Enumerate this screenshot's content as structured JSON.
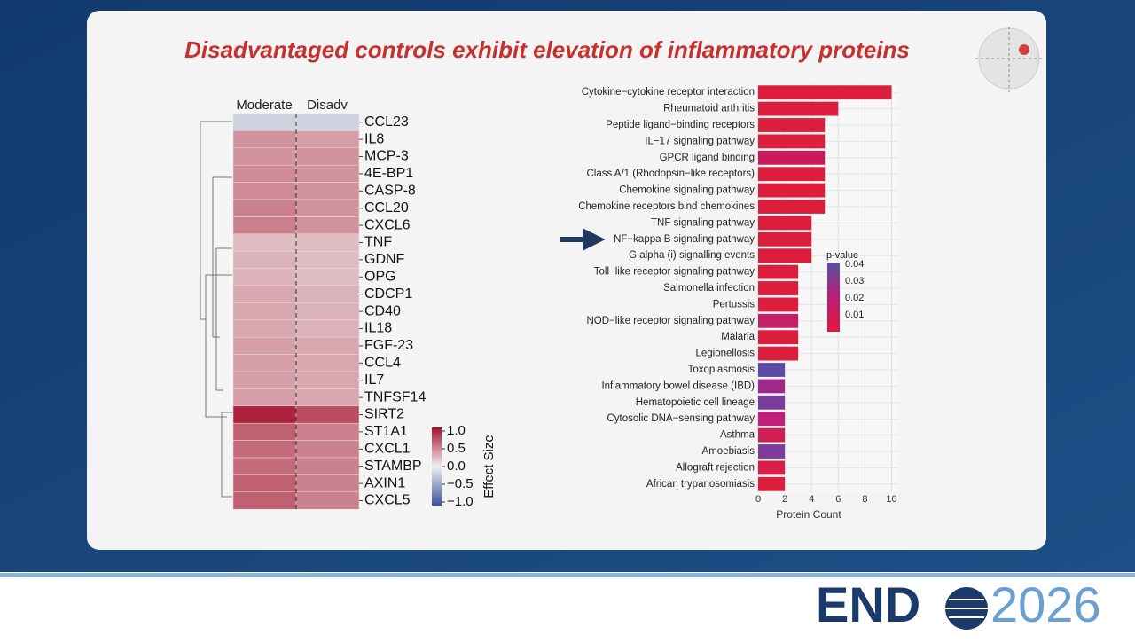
{
  "title": "Disadvantaged controls exhibit elevation of inflammatory proteins",
  "logo": {
    "left": "END",
    "right": "2026"
  },
  "chart_data": [
    {
      "type": "heatmap",
      "columns": [
        "Moderate",
        "Disadv"
      ],
      "categories": [
        "CCL23",
        "IL8",
        "MCP-3",
        "4E-BP1",
        "CASP-8",
        "CCL20",
        "CXCL6",
        "TNF",
        "GDNF",
        "OPG",
        "CDCP1",
        "CD40",
        "IL18",
        "FGF-23",
        "CCL4",
        "IL7",
        "TNFSF14",
        "SIRT2",
        "ST1A1",
        "CXCL1",
        "STAMBP",
        "AXIN1",
        "CXCL5"
      ],
      "values": [
        [
          -0.2,
          -0.2
        ],
        [
          0.45,
          0.4
        ],
        [
          0.45,
          0.45
        ],
        [
          0.5,
          0.45
        ],
        [
          0.5,
          0.45
        ],
        [
          0.55,
          0.45
        ],
        [
          0.55,
          0.45
        ],
        [
          0.25,
          0.25
        ],
        [
          0.3,
          0.25
        ],
        [
          0.3,
          0.25
        ],
        [
          0.35,
          0.3
        ],
        [
          0.35,
          0.3
        ],
        [
          0.35,
          0.3
        ],
        [
          0.4,
          0.35
        ],
        [
          0.4,
          0.35
        ],
        [
          0.4,
          0.35
        ],
        [
          0.4,
          0.35
        ],
        [
          1.0,
          0.8
        ],
        [
          0.7,
          0.55
        ],
        [
          0.65,
          0.55
        ],
        [
          0.65,
          0.55
        ],
        [
          0.7,
          0.55
        ],
        [
          0.7,
          0.55
        ]
      ],
      "colormap": [
        "#3a4f9a",
        "#f0f0f0",
        "#a50f2a"
      ],
      "colorbar_title": "Effect Size",
      "clim": [
        -1.1,
        1.1
      ],
      "cticks": [
        {
          "value": 1,
          "label": "1.0"
        },
        0.5,
        {
          "value": 0,
          "label": "0.0"
        },
        {
          "value": -0.5,
          "label": "−0.5"
        },
        {
          "value": -1,
          "label": "−1.0"
        }
      ]
    },
    {
      "type": "bar",
      "orientation": "horizontal",
      "categories": [
        "Cytokine−cytokine receptor interaction",
        "Rheumatoid arthritis",
        "Peptide ligand−binding receptors",
        "IL−17 signaling pathway",
        "GPCR ligand binding",
        "Class A/1 (Rhodopsin−like receptors)",
        "Chemokine signaling pathway",
        "Chemokine receptors bind chemokines",
        "TNF signaling pathway",
        "NF−kappa B signaling pathway",
        "G alpha (i) signalling events",
        "Toll−like receptor signaling pathway",
        "Salmonella infection",
        "Pertussis",
        "NOD−like receptor signaling pathway",
        "Malaria",
        "Legionellosis",
        "Toxoplasmosis",
        "Inflammatory bowel disease (IBD)",
        "Hematopoietic cell lineage",
        "Cytosolic DNA−sensing pathway",
        "Asthma",
        "Amoebiasis",
        "Allograft rejection",
        "African trypanosomiasis"
      ],
      "values": [
        10,
        6,
        5,
        5,
        5,
        5,
        5,
        5,
        4,
        4,
        4,
        3,
        3,
        3,
        3,
        3,
        3,
        2,
        2,
        2,
        2,
        2,
        2,
        2,
        2
      ],
      "colors": [
        "#dc1e3c",
        "#dc1e3c",
        "#dc1e3c",
        "#dc1e3c",
        "#c81c5a",
        "#dc1e3c",
        "#dc1e3c",
        "#dc1e3c",
        "#dc1e3c",
        "#dc1e3c",
        "#dc1e3c",
        "#dc1e3c",
        "#dc1e3c",
        "#dc1e3c",
        "#c4206a",
        "#dc1e3c",
        "#dc1e3c",
        "#5b4aa8",
        "#a0288a",
        "#7a3c9c",
        "#c0207a",
        "#d01e55",
        "#7c3a9a",
        "#d81e48",
        "#dc1e3c"
      ],
      "xlabel": "Protein Count",
      "xlim": [
        0,
        10.5
      ],
      "xticks": [
        0,
        2,
        4,
        6,
        8,
        10
      ],
      "grid": true,
      "colorbar_title": "p-value",
      "colorbar_colors": [
        "#e8163c",
        "#b81e78",
        "#5a4fa0"
      ],
      "clim": [
        0,
        0.04
      ],
      "cticks": [
        0.04,
        0.03,
        0.02,
        0.01
      ]
    }
  ]
}
